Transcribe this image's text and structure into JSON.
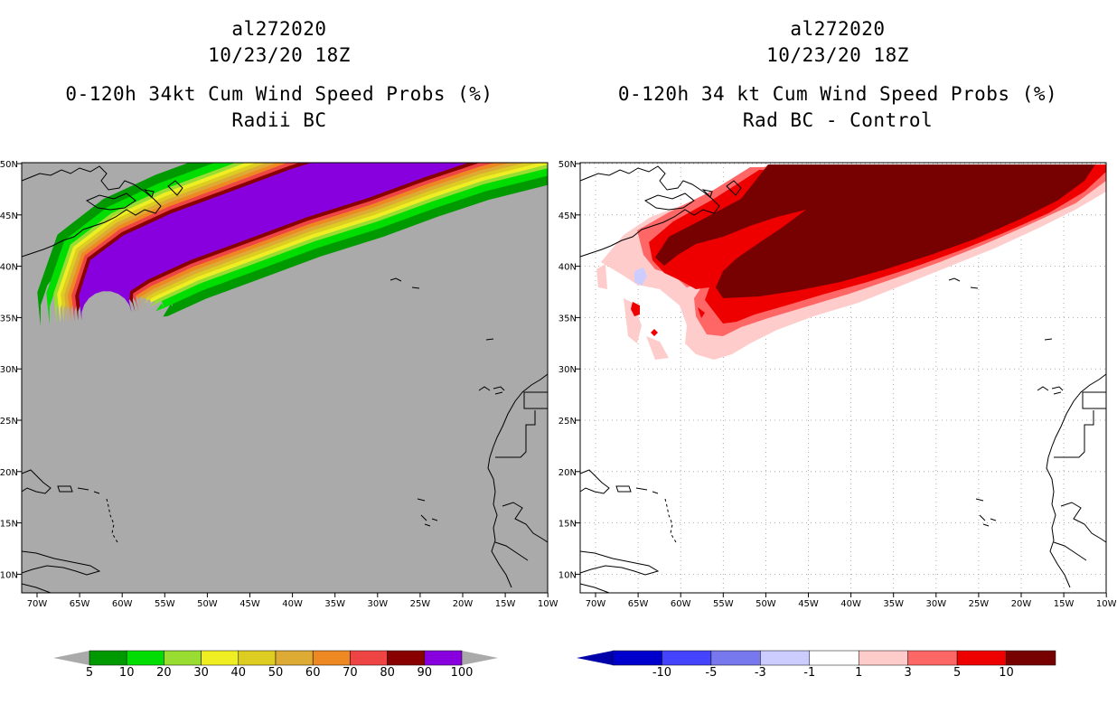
{
  "left_panel": {
    "storm_id": "al272020",
    "datetime": "10/23/20 18Z",
    "title": "0-120h 34kt Cum Wind Speed Probs (%)",
    "subtitle": "Radii BC",
    "background_color": "#aaaaaa",
    "colorbar": {
      "labels": [
        "5",
        "10",
        "20",
        "30",
        "40",
        "50",
        "60",
        "70",
        "80",
        "90",
        "100"
      ],
      "colors": [
        "#009900",
        "#00dd00",
        "#99dd33",
        "#eeee22",
        "#ddcc22",
        "#ddaa33",
        "#ee8822",
        "#ee4444",
        "#880000",
        "#8800dd"
      ],
      "end_color": "#aaaaaa"
    },
    "prob_bands": [
      {
        "label": "5",
        "color": "#009900"
      },
      {
        "label": "10",
        "color": "#00dd00"
      },
      {
        "label": "20",
        "color": "#99dd33"
      },
      {
        "label": "30",
        "color": "#eeee22"
      },
      {
        "label": "40",
        "color": "#ddcc22"
      },
      {
        "label": "50",
        "color": "#ddaa33"
      },
      {
        "label": "60",
        "color": "#ee8822"
      },
      {
        "label": "70",
        "color": "#ee4444"
      },
      {
        "label": "80",
        "color": "#880000"
      },
      {
        "label": "90",
        "color": "#8800dd"
      }
    ]
  },
  "right_panel": {
    "storm_id": "al272020",
    "datetime": "10/23/20 18Z",
    "title": "0-120h 34 kt Cum Wind Speed Probs (%)",
    "subtitle": "Rad BC - Control",
    "background_color": "#ffffff",
    "colorbar": {
      "labels": [
        "-10",
        "-5",
        "-3",
        "-1",
        "1",
        "3",
        "5",
        "10"
      ],
      "colors": [
        "#0000cc",
        "#4444ff",
        "#7777ee",
        "#ccccff",
        "#ffffff",
        "#ffcccc",
        "#ff6666",
        "#ee0000",
        "#770000"
      ],
      "start_color": "#0000aa",
      "end_color": "#770000"
    }
  },
  "axes": {
    "lon_labels": [
      "70W",
      "65W",
      "60W",
      "55W",
      "50W",
      "45W",
      "40W",
      "35W",
      "30W",
      "25W",
      "20W",
      "15W",
      "10W"
    ],
    "lat_labels": [
      "50N",
      "45N",
      "40N",
      "35N",
      "30N",
      "25N",
      "20N",
      "15N",
      "10N"
    ]
  }
}
